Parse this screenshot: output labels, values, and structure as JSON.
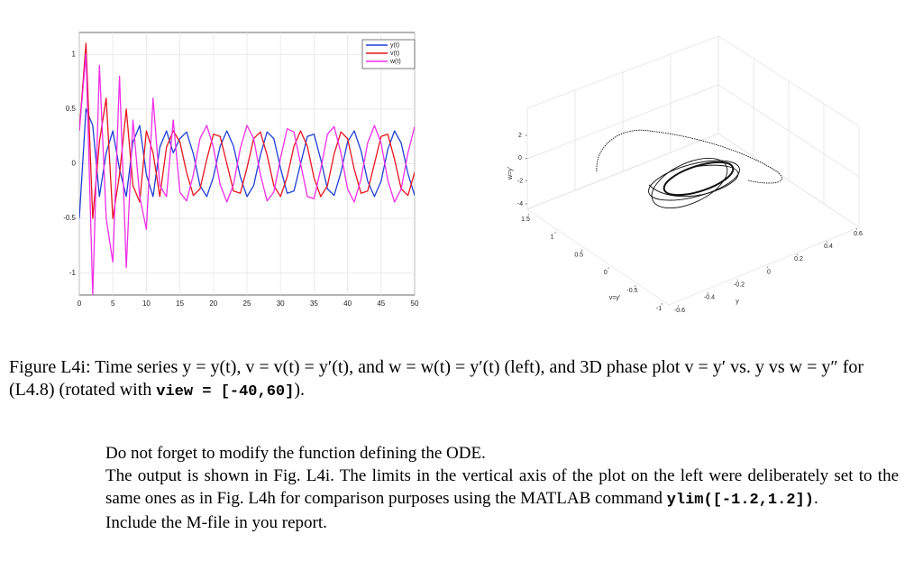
{
  "chart_data": [
    {
      "type": "line",
      "x": [
        0,
        1,
        2,
        3,
        4,
        5,
        6,
        7,
        8,
        9,
        10,
        11,
        12,
        13,
        14,
        15,
        16,
        17,
        18,
        19,
        20,
        21,
        22,
        23,
        24,
        25,
        26,
        27,
        28,
        29,
        30,
        31,
        32,
        33,
        34,
        35,
        36,
        37,
        38,
        39,
        40,
        41,
        42,
        43,
        44,
        45,
        46,
        47,
        48,
        49,
        50
      ],
      "series": [
        {
          "name": "y(t)",
          "color": "#1f3fd6",
          "values": [
            -0.5,
            0.5,
            0.35,
            -0.3,
            0.1,
            0.3,
            -0.05,
            -0.3,
            0.2,
            0.35,
            -0.1,
            -0.3,
            0.15,
            0.3,
            0.1,
            0.23,
            0.29,
            0.09,
            -0.2,
            -0.3,
            -0.12,
            0.16,
            0.3,
            0.16,
            -0.12,
            -0.3,
            -0.2,
            0.08,
            0.29,
            0.23,
            -0.04,
            -0.27,
            -0.25,
            0,
            0.25,
            0.27,
            0.04,
            -0.23,
            -0.29,
            -0.08,
            0.2,
            0.3,
            0.12,
            -0.16,
            -0.3,
            -0.16,
            0.13,
            0.3,
            0.19,
            -0.09,
            -0.29
          ]
        },
        {
          "name": "v(t)",
          "color": "#e8141e",
          "values": [
            0.3,
            1.1,
            -0.5,
            0.2,
            0.6,
            -0.5,
            -0.1,
            0.5,
            -0.2,
            -0.35,
            0.3,
            0.1,
            -0.3,
            0.15,
            0.3,
            0.2,
            -0.08,
            -0.29,
            -0.23,
            0.04,
            0.27,
            0.25,
            0,
            -0.25,
            -0.27,
            -0.04,
            0.23,
            0.29,
            0.08,
            -0.2,
            -0.3,
            -0.12,
            0.16,
            0.3,
            0.16,
            -0.13,
            -0.3,
            -0.2,
            0.09,
            0.29,
            0.23,
            -0.05,
            -0.27,
            -0.25,
            0,
            0.25,
            0.27,
            0.04,
            -0.23,
            -0.29,
            -0.08
          ]
        },
        {
          "name": "w(t)",
          "color": "#f02ee8",
          "values": [
            0.3,
            1.0,
            -1.2,
            0.9,
            -0.5,
            -0.9,
            0.8,
            -0.95,
            0.4,
            -0.3,
            -0.6,
            0.6,
            -0.2,
            -0.3,
            0.4,
            -0.26,
            -0.34,
            -0.1,
            0.23,
            0.35,
            0.15,
            -0.19,
            -0.35,
            -0.19,
            0.14,
            0.35,
            0.23,
            -0.1,
            -0.34,
            -0.26,
            0.05,
            0.32,
            0.29,
            0,
            -0.3,
            -0.32,
            -0.05,
            0.27,
            0.34,
            0.1,
            -0.23,
            -0.35,
            -0.14,
            0.19,
            0.35,
            0.19,
            -0.15,
            -0.35,
            -0.23,
            0.1,
            0.34
          ]
        }
      ],
      "xlim": [
        0,
        50
      ],
      "xticks": [
        0,
        5,
        10,
        15,
        20,
        25,
        30,
        35,
        40,
        45,
        50
      ],
      "ylim": [
        -1.2,
        1.2
      ],
      "yticks": [
        -1,
        -0.5,
        0,
        0.5,
        1
      ],
      "grid": true,
      "legend": "upper right"
    },
    {
      "type": "line3d",
      "xlabel": "v=y'",
      "ylabel": "y",
      "zlabel": "w=y'",
      "xlim": [
        -1,
        1.5
      ],
      "xticks": [
        1.5,
        1,
        0.5,
        0,
        -0.5,
        -1
      ],
      "ylim": [
        -0.6,
        0.6
      ],
      "yticks": [
        -0.6,
        -0.4,
        -0.2,
        0,
        0.2,
        0.4,
        0.6
      ],
      "zlim": [
        -4,
        2
      ],
      "zticks": [
        2,
        0,
        -2,
        -4
      ]
    }
  ],
  "caption": {
    "text": "Figure L4i: Time series y = y(t), v = v(t) = y′(t), and w = w(t) = y′(t) (left), and 3D phase plot v = y′ vs. y vs w = y″ for (L4.8) (rotated with",
    "code": "view = [-40,60]",
    "end": ")."
  },
  "body": {
    "line1": "Do not forget to modify the function defining the ODE.",
    "line2": "The output is shown in Fig. L4i. The limits in the vertical axis of the plot on the left were deliberately set to the same ones as in Fig. L4h for comparison purposes using the MATLAB command",
    "code": "ylim([-1.2,1.2])",
    "end": ".",
    "line3": "Include the M-file in you report."
  }
}
